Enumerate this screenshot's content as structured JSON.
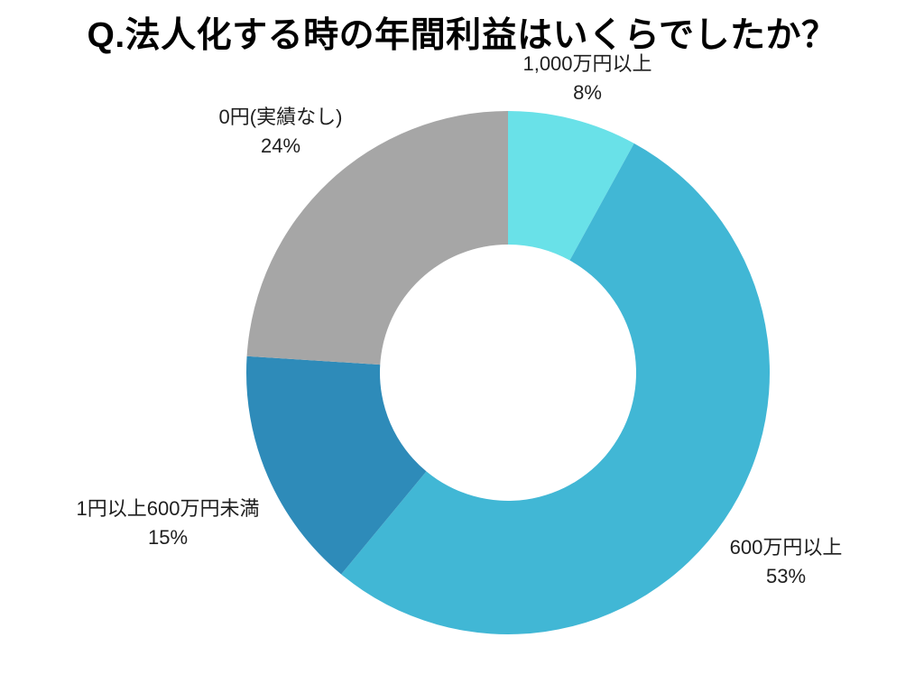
{
  "chart_data": {
    "type": "pie",
    "subtype": "donut",
    "title": "Q.法人化する時の年間利益はいくらでしたか？",
    "direction": "clockwise",
    "start_angle_deg": 0,
    "inner_radius_ratio": 0.49,
    "legend_position": "none",
    "labels_position": "outside",
    "background_color": "#ffffff",
    "title_color": "#000000",
    "label_text_color": "#1f1f1f",
    "segments": [
      {
        "label": "1,000万円以上",
        "value": 8,
        "pct": "8%",
        "color": "#69E1E8"
      },
      {
        "label": "600万円以上",
        "value": 53,
        "pct": "53%",
        "color": "#41B7D5"
      },
      {
        "label": "1円以上600万円未満",
        "value": 15,
        "pct": "15%",
        "color": "#2E8BB9"
      },
      {
        "label": "0円(実績なし)",
        "value": 24,
        "pct": "24%",
        "color": "#A6A6A6"
      }
    ]
  }
}
